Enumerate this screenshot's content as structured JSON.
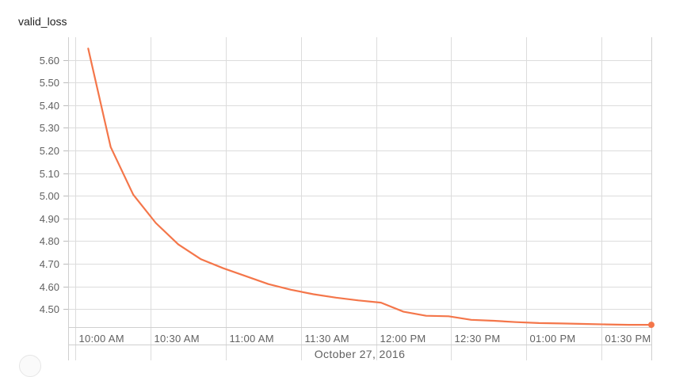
{
  "card": {
    "title": "valid_loss"
  },
  "chart_data": {
    "type": "line",
    "title": "valid_loss",
    "xlabel": "October 27, 2016",
    "ylabel": "",
    "x_unit": "time of day",
    "x_ticks": [
      "10:00 AM",
      "10:30 AM",
      "11:00 AM",
      "11:30 AM",
      "12:00 PM",
      "12:30 PM",
      "01:00 PM",
      "01:30 PM"
    ],
    "x_range": [
      "09:57 AM",
      "01:50 PM"
    ],
    "y_ticks": [
      "5.60",
      "5.50",
      "5.40",
      "5.30",
      "5.20",
      "5.10",
      "5.00",
      "4.90",
      "4.80",
      "4.70",
      "4.60",
      "4.50"
    ],
    "ylim": [
      4.42,
      5.7
    ],
    "grid": true,
    "legend": "none",
    "series": [
      {
        "color": "#f4764a",
        "x": [
          "10:05 AM",
          "10:14 AM",
          "10:23 AM",
          "10:32 AM",
          "10:41 AM",
          "10:50 AM",
          "10:59 AM",
          "11:08 AM",
          "11:17 AM",
          "11:26 AM",
          "11:35 AM",
          "11:44 AM",
          "11:53 AM",
          "12:02 PM",
          "12:11 PM",
          "12:20 PM",
          "12:29 PM",
          "12:38 PM",
          "12:47 PM",
          "12:56 PM",
          "01:05 PM",
          "01:14 PM",
          "01:23 PM",
          "01:32 PM",
          "01:41 PM",
          "01:50 PM"
        ],
        "y": [
          5.65,
          5.215,
          5.005,
          4.88,
          4.785,
          4.72,
          4.68,
          4.645,
          4.61,
          4.585,
          4.565,
          4.55,
          4.538,
          4.528,
          4.488,
          4.47,
          4.468,
          4.452,
          4.448,
          4.442,
          4.438,
          4.436,
          4.434,
          4.432,
          4.43,
          4.43
        ]
      }
    ]
  }
}
